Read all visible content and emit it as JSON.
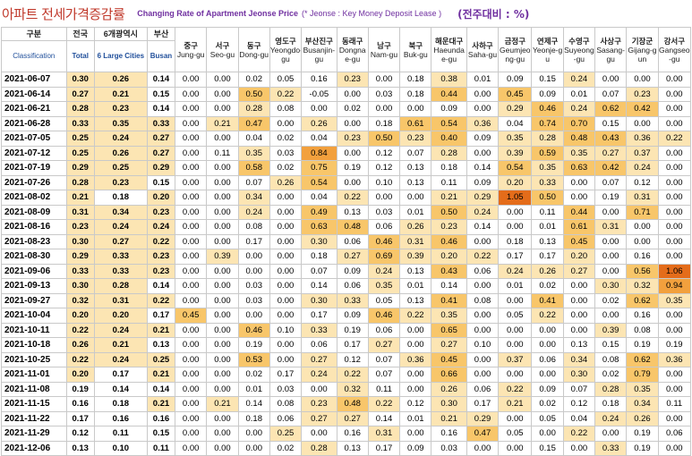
{
  "title": {
    "korean": "아파트 전세가격증감률",
    "english": "Changing Rate of Apartment Jeonse Price",
    "note": "(* Jeonse : Key Money Deposit Lease )",
    "unit": "(전주대비 : %)"
  },
  "header": {
    "classification_ko": "구분",
    "classification_en": "Classification",
    "total_ko": "전국",
    "total_en": "Total",
    "large_ko": "6개광역시",
    "large_en": "6 Large Cities",
    "busan_ko": "부산",
    "busan_en": "Busan",
    "districts": [
      {
        "ko": "중구",
        "en": "Jung-gu"
      },
      {
        "ko": "서구",
        "en": "Seo-gu"
      },
      {
        "ko": "동구",
        "en": "Dong-gu"
      },
      {
        "ko": "영도구",
        "en": "Yeongdo-gu"
      },
      {
        "ko": "부산진구",
        "en": "Busanjin-gu"
      },
      {
        "ko": "동래구",
        "en": "Dongnae-gu"
      },
      {
        "ko": "남구",
        "en": "Nam-gu"
      },
      {
        "ko": "북구",
        "en": "Buk-gu"
      },
      {
        "ko": "해운대구",
        "en": "Haeundae-gu"
      },
      {
        "ko": "사하구",
        "en": "Saha-gu"
      },
      {
        "ko": "금정구",
        "en": "Geumjeong-gu"
      },
      {
        "ko": "연제구",
        "en": "Yeonje-gu"
      },
      {
        "ko": "수영구",
        "en": "Suyeong-gu"
      },
      {
        "ko": "사상구",
        "en": "Sasang-gu"
      },
      {
        "ko": "기장군",
        "en": "Gijang-gun"
      },
      {
        "ko": "강서구",
        "en": "Gangseo-gu"
      }
    ]
  },
  "rows": [
    {
      "date": "2021-06-07",
      "v": [
        "0.30",
        "0.26",
        "0.14",
        "0.00",
        "0.00",
        "0.02",
        "0.05",
        "0.16",
        "0.23",
        "0.00",
        "0.18",
        "0.38",
        "0.01",
        "0.09",
        "0.15",
        "0.24",
        "0.00",
        "0.00",
        "0.00"
      ]
    },
    {
      "date": "2021-06-14",
      "v": [
        "0.27",
        "0.21",
        "0.15",
        "0.00",
        "0.00",
        "0.50",
        "0.22",
        "-0.05",
        "0.00",
        "0.03",
        "0.18",
        "0.44",
        "0.00",
        "0.45",
        "0.09",
        "0.01",
        "0.07",
        "0.23",
        "0.00"
      ]
    },
    {
      "date": "2021-06-21",
      "v": [
        "0.28",
        "0.23",
        "0.14",
        "0.00",
        "0.00",
        "0.28",
        "0.08",
        "0.00",
        "0.02",
        "0.00",
        "0.00",
        "0.09",
        "0.00",
        "0.29",
        "0.46",
        "0.24",
        "0.62",
        "0.42",
        "0.00"
      ]
    },
    {
      "date": "2021-06-28",
      "v": [
        "0.33",
        "0.35",
        "0.33",
        "0.00",
        "0.21",
        "0.47",
        "0.00",
        "0.26",
        "0.00",
        "0.18",
        "0.61",
        "0.54",
        "0.36",
        "0.04",
        "0.74",
        "0.70",
        "0.15",
        "0.00",
        "0.00"
      ]
    },
    {
      "date": "2021-07-05",
      "v": [
        "0.25",
        "0.24",
        "0.27",
        "0.00",
        "0.00",
        "0.04",
        "0.02",
        "0.04",
        "0.23",
        "0.50",
        "0.23",
        "0.40",
        "0.09",
        "0.35",
        "0.28",
        "0.48",
        "0.43",
        "0.36",
        "0.22"
      ]
    },
    {
      "date": "2021-07-12",
      "v": [
        "0.25",
        "0.26",
        "0.27",
        "0.00",
        "0.11",
        "0.35",
        "0.03",
        "0.84",
        "0.00",
        "0.12",
        "0.07",
        "0.28",
        "0.00",
        "0.39",
        "0.59",
        "0.35",
        "0.27",
        "0.37",
        "0.00"
      ]
    },
    {
      "date": "2021-07-19",
      "v": [
        "0.29",
        "0.25",
        "0.29",
        "0.00",
        "0.00",
        "0.58",
        "0.02",
        "0.75",
        "0.19",
        "0.12",
        "0.13",
        "0.18",
        "0.14",
        "0.54",
        "0.35",
        "0.63",
        "0.42",
        "0.24",
        "0.00"
      ]
    },
    {
      "date": "2021-07-26",
      "v": [
        "0.28",
        "0.23",
        "0.15",
        "0.00",
        "0.00",
        "0.07",
        "0.26",
        "0.54",
        "0.00",
        "0.10",
        "0.13",
        "0.11",
        "0.09",
        "0.20",
        "0.33",
        "0.00",
        "0.07",
        "0.12",
        "0.00"
      ]
    },
    {
      "date": "2021-08-02",
      "v": [
        "0.21",
        "0.18",
        "0.20",
        "0.00",
        "0.00",
        "0.34",
        "0.00",
        "0.04",
        "0.22",
        "0.00",
        "0.00",
        "0.21",
        "0.29",
        "1.05",
        "0.50",
        "0.00",
        "0.19",
        "0.31",
        "0.00"
      ]
    },
    {
      "date": "2021-08-09",
      "v": [
        "0.31",
        "0.34",
        "0.23",
        "0.00",
        "0.00",
        "0.24",
        "0.00",
        "0.49",
        "0.13",
        "0.03",
        "0.01",
        "0.50",
        "0.24",
        "0.00",
        "0.11",
        "0.44",
        "0.00",
        "0.71",
        "0.00"
      ]
    },
    {
      "date": "2021-08-16",
      "v": [
        "0.23",
        "0.24",
        "0.24",
        "0.00",
        "0.00",
        "0.08",
        "0.00",
        "0.63",
        "0.48",
        "0.06",
        "0.26",
        "0.23",
        "0.14",
        "0.00",
        "0.01",
        "0.61",
        "0.31",
        "0.00",
        "0.00"
      ]
    },
    {
      "date": "2021-08-23",
      "v": [
        "0.30",
        "0.27",
        "0.22",
        "0.00",
        "0.00",
        "0.17",
        "0.00",
        "0.30",
        "0.06",
        "0.46",
        "0.31",
        "0.46",
        "0.00",
        "0.18",
        "0.13",
        "0.45",
        "0.00",
        "0.00",
        "0.00"
      ]
    },
    {
      "date": "2021-08-30",
      "v": [
        "0.29",
        "0.33",
        "0.23",
        "0.00",
        "0.39",
        "0.00",
        "0.00",
        "0.18",
        "0.27",
        "0.69",
        "0.39",
        "0.20",
        "0.22",
        "0.17",
        "0.17",
        "0.20",
        "0.00",
        "0.16",
        "0.00"
      ]
    },
    {
      "date": "2021-09-06",
      "v": [
        "0.33",
        "0.33",
        "0.23",
        "0.00",
        "0.00",
        "0.00",
        "0.00",
        "0.07",
        "0.09",
        "0.24",
        "0.13",
        "0.43",
        "0.06",
        "0.24",
        "0.26",
        "0.27",
        "0.00",
        "0.56",
        "1.06"
      ]
    },
    {
      "date": "2021-09-13",
      "v": [
        "0.30",
        "0.28",
        "0.14",
        "0.00",
        "0.00",
        "0.03",
        "0.00",
        "0.14",
        "0.06",
        "0.35",
        "0.01",
        "0.14",
        "0.00",
        "0.01",
        "0.02",
        "0.00",
        "0.30",
        "0.32",
        "0.94"
      ]
    },
    {
      "date": "2021-09-27",
      "v": [
        "0.32",
        "0.31",
        "0.22",
        "0.00",
        "0.00",
        "0.03",
        "0.00",
        "0.30",
        "0.33",
        "0.05",
        "0.13",
        "0.41",
        "0.08",
        "0.00",
        "0.41",
        "0.00",
        "0.02",
        "0.62",
        "0.35"
      ]
    },
    {
      "date": "2021-10-04",
      "v": [
        "0.20",
        "0.20",
        "0.17",
        "0.45",
        "0.00",
        "0.00",
        "0.00",
        "0.17",
        "0.09",
        "0.46",
        "0.22",
        "0.35",
        "0.00",
        "0.05",
        "0.22",
        "0.00",
        "0.00",
        "0.16",
        "0.00"
      ]
    },
    {
      "date": "2021-10-11",
      "v": [
        "0.22",
        "0.24",
        "0.21",
        "0.00",
        "0.00",
        "0.46",
        "0.10",
        "0.33",
        "0.19",
        "0.06",
        "0.00",
        "0.65",
        "0.00",
        "0.00",
        "0.00",
        "0.00",
        "0.39",
        "0.08",
        "0.00"
      ]
    },
    {
      "date": "2021-10-18",
      "v": [
        "0.26",
        "0.21",
        "0.13",
        "0.00",
        "0.00",
        "0.19",
        "0.00",
        "0.06",
        "0.17",
        "0.27",
        "0.00",
        "0.27",
        "0.10",
        "0.00",
        "0.00",
        "0.13",
        "0.15",
        "0.19",
        "0.19"
      ]
    },
    {
      "date": "2021-10-25",
      "v": [
        "0.22",
        "0.24",
        "0.25",
        "0.00",
        "0.00",
        "0.53",
        "0.00",
        "0.27",
        "0.12",
        "0.07",
        "0.36",
        "0.45",
        "0.00",
        "0.37",
        "0.06",
        "0.34",
        "0.08",
        "0.62",
        "0.36"
      ]
    },
    {
      "date": "2021-11-01",
      "v": [
        "0.20",
        "0.17",
        "0.21",
        "0.00",
        "0.00",
        "0.02",
        "0.17",
        "0.24",
        "0.22",
        "0.07",
        "0.00",
        "0.66",
        "0.00",
        "0.00",
        "0.00",
        "0.30",
        "0.02",
        "0.79",
        "0.00"
      ]
    },
    {
      "date": "2021-11-08",
      "v": [
        "0.19",
        "0.14",
        "0.14",
        "0.00",
        "0.00",
        "0.01",
        "0.03",
        "0.00",
        "0.32",
        "0.11",
        "0.00",
        "0.26",
        "0.06",
        "0.22",
        "0.09",
        "0.07",
        "0.28",
        "0.35",
        "0.00"
      ]
    },
    {
      "date": "2021-11-15",
      "v": [
        "0.16",
        "0.18",
        "0.21",
        "0.00",
        "0.21",
        "0.14",
        "0.08",
        "0.23",
        "0.48",
        "0.22",
        "0.12",
        "0.30",
        "0.17",
        "0.21",
        "0.02",
        "0.12",
        "0.18",
        "0.34",
        "0.11"
      ]
    },
    {
      "date": "2021-11-22",
      "v": [
        "0.17",
        "0.16",
        "0.16",
        "0.00",
        "0.00",
        "0.18",
        "0.06",
        "0.27",
        "0.27",
        "0.14",
        "0.01",
        "0.21",
        "0.29",
        "0.00",
        "0.05",
        "0.04",
        "0.24",
        "0.26",
        "0.00"
      ]
    },
    {
      "date": "2021-11-29",
      "v": [
        "0.12",
        "0.11",
        "0.15",
        "0.00",
        "0.00",
        "0.00",
        "0.25",
        "0.00",
        "0.16",
        "0.31",
        "0.00",
        "0.16",
        "0.47",
        "0.05",
        "0.00",
        "0.22",
        "0.00",
        "0.19",
        "0.06"
      ]
    },
    {
      "date": "2021-12-06",
      "v": [
        "0.13",
        "0.10",
        "0.11",
        "0.00",
        "0.00",
        "0.00",
        "0.02",
        "0.28",
        "0.13",
        "0.17",
        "0.09",
        "0.03",
        "0.00",
        "0.00",
        "0.15",
        "0.00",
        "0.33",
        "0.19",
        "0.00"
      ]
    }
  ]
}
